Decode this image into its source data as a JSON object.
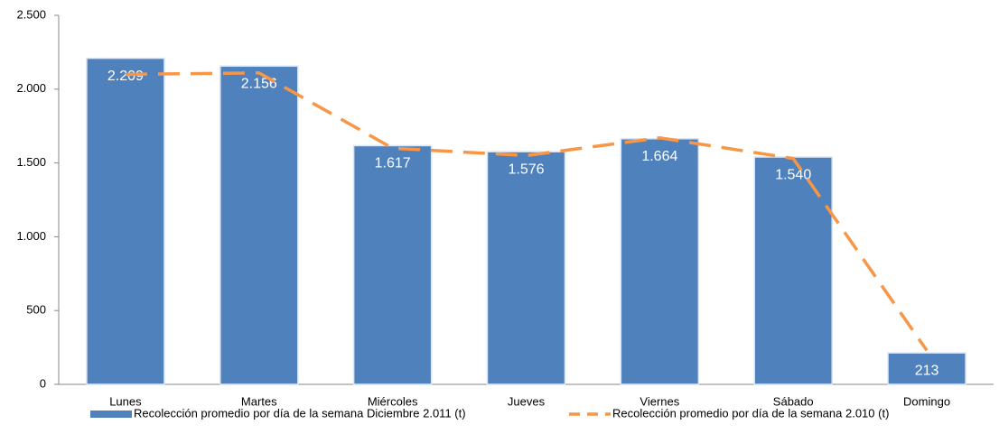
{
  "chart_data": {
    "type": "bar",
    "categories": [
      "Lunes",
      "Martes",
      "Miércoles",
      "Jueves",
      "Viernes",
      "Sábado",
      "Domingo"
    ],
    "series": [
      {
        "name": "Recolección promedio por día de la semana Diciembre 2.011 (t)",
        "type": "bar",
        "color": "#4f81bd",
        "values": [
          2209,
          2156,
          1617,
          1576,
          1664,
          1540,
          213
        ],
        "value_labels": [
          "2.209",
          "2.156",
          "1.617",
          "1.576",
          "1.664",
          "1.540",
          "213"
        ]
      },
      {
        "name": "Recolección promedio por día de la semana 2.010 (t)",
        "type": "line",
        "color": "#f79646",
        "values": [
          2100,
          2110,
          1600,
          1550,
          1670,
          1530,
          230
        ]
      }
    ],
    "ylim": [
      0,
      2500
    ],
    "yticks": [
      0,
      500,
      {
        "value": 1000,
        "label": "1.000"
      },
      {
        "value": 1500,
        "label": "1.500"
      },
      {
        "value": 2000,
        "label": "2.000"
      },
      {
        "value": 2500,
        "label": "2.500"
      }
    ],
    "grid": false,
    "legend": "bottom"
  }
}
